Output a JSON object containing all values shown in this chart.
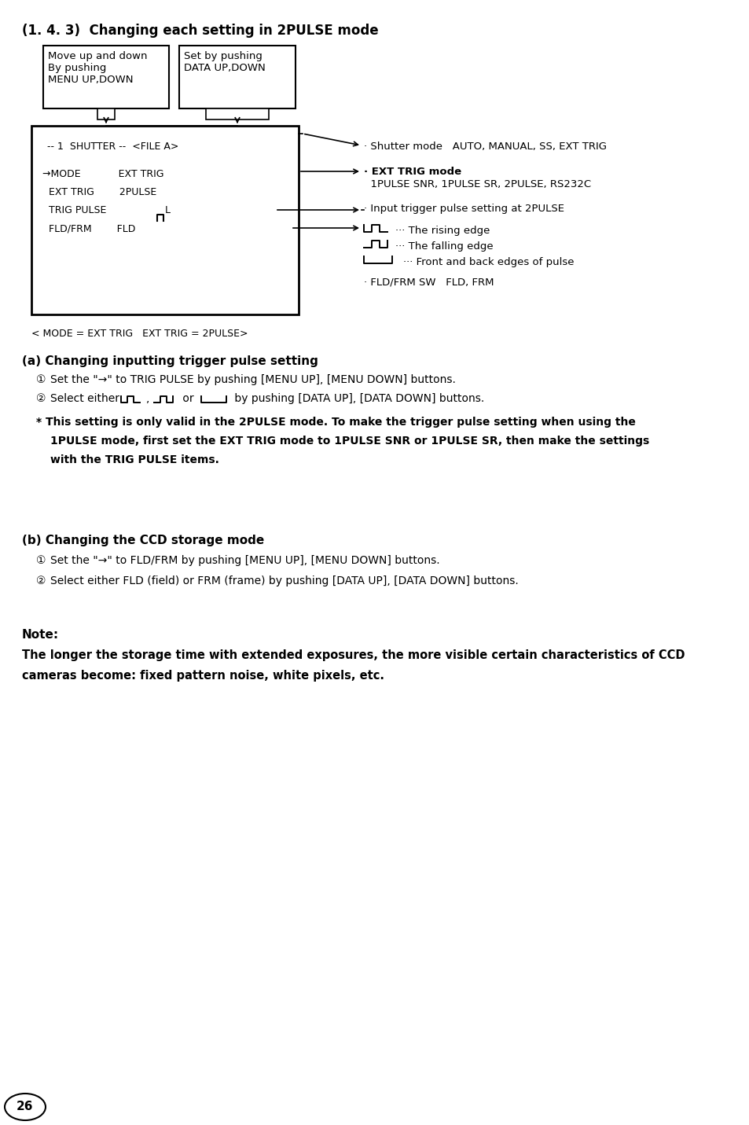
{
  "bg_color": "#ffffff",
  "page_number": "26",
  "main_title": "(1. 4. 3)  Changing each setting in 2PULSE mode",
  "section_a_title": "(a) Changing inputting trigger pulse setting",
  "section_b_title": "(b) Changing the CCD storage mode",
  "note_title": "Note:",
  "note_text_line1": "The longer the storage time with extended exposures, the more visible certain characteristics of CCD",
  "note_text_line2": "cameras become: fixed pattern noise, white pixels, etc.",
  "mode_label": "< MODE = EXT TRIG   EXT TRIG = 2PULSE>",
  "box1_text": "Move up and down\nBy pushing\nMENU UP,DOWN",
  "box2_text": "Set by pushing\nDATA UP,DOWN",
  "shutter_line": "-- 1  SHUTTER --  <FILE A>",
  "screen_line1": "→MODE            EXT TRIG",
  "screen_line2": "  EXT TRIG        2PULSE",
  "screen_line3": "  TRIG PULSE",
  "screen_line4": "  FLD/FRM        FLD",
  "ann1": "· Shutter mode   AUTO, MANUAL, SS, EXT TRIG",
  "ann2a": "· EXT TRIG mode",
  "ann2b": "  1PULSE SNR, 1PULSE SR, 2PULSE, RS232C",
  "ann3": "· Input trigger pulse setting at 2PULSE",
  "ann_rising": "··· The rising edge",
  "ann_falling": "··· The falling edge",
  "ann_both": "··· Front and back edges of pulse",
  "ann4": "· FLD/FRM SW   FLD, FRM",
  "step_a1": "Set the \"→\" to TRIG PULSE by pushing [MENU UP], [MENU DOWN] buttons.",
  "step_a2_pre": "Select either ",
  "step_a2_post": " by pushing [DATA UP], [DATA DOWN] buttons.",
  "note_a_line1": "* This setting is only valid in the 2PULSE mode. To make the trigger pulse setting when using the",
  "note_a_line2": "1PULSE mode, first set the EXT TRIG mode to 1PULSE SNR or 1PULSE SR, then make the settings",
  "note_a_line3": "with the TRIG PULSE items.",
  "step_b1": "Set the \"→\" to FLD/FRM by pushing [MENU UP], [MENU DOWN] buttons.",
  "step_b2": "Select either FLD (field) or FRM (frame) by pushing [DATA UP], [DATA DOWN] buttons."
}
